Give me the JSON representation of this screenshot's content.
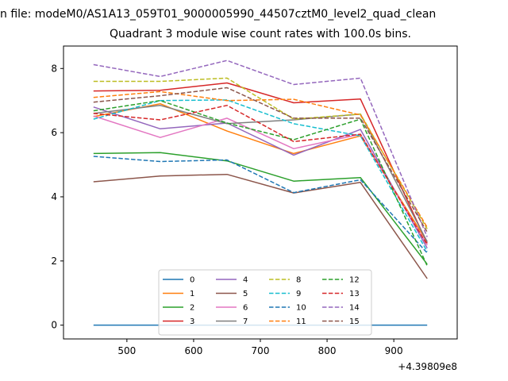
{
  "figure": {
    "suptitle": "n file: modeM0/AS1A13_059T01_9000005990_44507cztM0_level2_quad_clean",
    "title": "Quadrant 3 module wise count rates with 100.0s bins."
  },
  "chart_data": {
    "type": "line",
    "title": "Quadrant 3 module wise count rates with 100.0s bins.",
    "xlabel": "",
    "ylabel": "",
    "x_offset_label": "+4.39809e8",
    "x": [
      450,
      550,
      650,
      750,
      850,
      950
    ],
    "xlim": [
      405,
      995
    ],
    "ylim": [
      -0.43,
      8.7
    ],
    "xticks": [
      500,
      600,
      700,
      800,
      900
    ],
    "yticks": [
      0,
      2,
      4,
      6,
      8
    ],
    "grid": false,
    "legend_location": "lower center",
    "legend_columns": 4,
    "series": [
      {
        "name": "0",
        "color": "#1f77b4",
        "dash": "solid",
        "values": [
          0.0,
          0.0,
          0.0,
          0.0,
          0.0,
          0.0
        ]
      },
      {
        "name": "1",
        "color": "#ff7f0e",
        "dash": "solid",
        "values": [
          6.5,
          6.9,
          6.05,
          5.35,
          5.9,
          2.6
        ]
      },
      {
        "name": "2",
        "color": "#2ca02c",
        "dash": "solid",
        "values": [
          5.35,
          5.38,
          5.12,
          4.49,
          4.6,
          1.9
        ]
      },
      {
        "name": "3",
        "color": "#d62728",
        "dash": "solid",
        "values": [
          7.3,
          7.32,
          7.55,
          6.93,
          7.05,
          2.55
        ]
      },
      {
        "name": "4",
        "color": "#9467bd",
        "dash": "solid",
        "values": [
          6.8,
          6.12,
          6.3,
          5.3,
          6.1,
          2.4
        ]
      },
      {
        "name": "5",
        "color": "#8c564b",
        "dash": "solid",
        "values": [
          4.47,
          4.65,
          4.7,
          4.12,
          4.45,
          1.45
        ]
      },
      {
        "name": "6",
        "color": "#e377c2",
        "dash": "solid",
        "values": [
          6.52,
          5.85,
          6.45,
          5.5,
          5.95,
          2.5
        ]
      },
      {
        "name": "7",
        "color": "#7f7f7f",
        "dash": "solid",
        "values": [
          6.6,
          6.85,
          6.28,
          6.4,
          6.58,
          2.6
        ]
      },
      {
        "name": "8",
        "color": "#bcbd22",
        "dash": "dashed",
        "values": [
          7.6,
          7.6,
          7.7,
          6.42,
          6.58,
          3.0
        ]
      },
      {
        "name": "9",
        "color": "#17becf",
        "dash": "dashed",
        "values": [
          6.42,
          7.0,
          7.02,
          6.28,
          5.9,
          2.3
        ]
      },
      {
        "name": "10",
        "color": "#1f77b4",
        "dash": "dashed",
        "values": [
          5.26,
          5.1,
          5.15,
          4.13,
          4.53,
          2.25
        ]
      },
      {
        "name": "11",
        "color": "#ff7f0e",
        "dash": "dashed",
        "values": [
          7.1,
          7.28,
          7.0,
          7.04,
          6.55,
          3.05
        ]
      },
      {
        "name": "12",
        "color": "#2ca02c",
        "dash": "dashed",
        "values": [
          6.68,
          7.0,
          6.3,
          5.78,
          6.42,
          1.85
        ]
      },
      {
        "name": "13",
        "color": "#d62728",
        "dash": "dashed",
        "values": [
          6.6,
          6.4,
          6.85,
          5.72,
          5.95,
          2.5
        ]
      },
      {
        "name": "14",
        "color": "#9467bd",
        "dash": "dashed",
        "values": [
          8.12,
          7.75,
          8.25,
          7.5,
          7.7,
          2.75
        ]
      },
      {
        "name": "15",
        "color": "#8c564b",
        "dash": "dashed",
        "values": [
          6.95,
          7.15,
          7.4,
          6.45,
          6.45,
          2.9
        ]
      }
    ]
  }
}
